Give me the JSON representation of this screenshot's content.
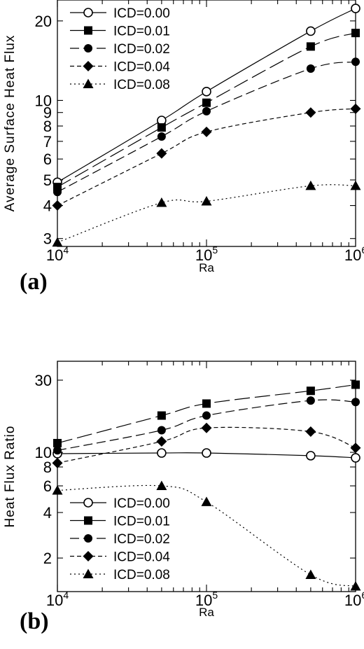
{
  "chart_data": [
    {
      "type": "line",
      "panel": "(a)",
      "xlabel": "Ra",
      "ylabel": "Average Surface Heat Flux",
      "xscale": "log",
      "yscale": "log",
      "xlim": [
        10000,
        1000000
      ],
      "ylim": [
        2.8,
        24
      ],
      "x": [
        10000,
        50000,
        100000,
        500000,
        1000000
      ],
      "x_ticks": [
        {
          "base": "10",
          "exp": "4"
        },
        {
          "base": "10",
          "exp": "5"
        },
        {
          "base": "10",
          "exp": "6"
        }
      ],
      "y_tick_labels": [
        "3",
        "4",
        "5",
        "6",
        "7",
        "8",
        "9",
        "10",
        "20"
      ],
      "legend_position": "top-left",
      "series": [
        {
          "name": "ICD=0.00",
          "marker": "open-circle",
          "dash": "solid",
          "values": [
            4.9,
            8.4,
            10.8,
            18.3,
            22.3
          ]
        },
        {
          "name": "ICD=0.01",
          "marker": "square",
          "dash": "long-dash",
          "values": [
            4.7,
            7.9,
            9.8,
            16.0,
            18.0
          ]
        },
        {
          "name": "ICD=0.02",
          "marker": "circle",
          "dash": "dash",
          "values": [
            4.5,
            7.3,
            9.1,
            13.2,
            14.0
          ]
        },
        {
          "name": "ICD=0.04",
          "marker": "diamond",
          "dash": "short-dash",
          "values": [
            4.0,
            6.3,
            7.6,
            9.0,
            9.3
          ]
        },
        {
          "name": "ICD=0.08",
          "marker": "triangle",
          "dash": "dotted",
          "values": [
            2.9,
            4.1,
            4.15,
            4.75,
            4.75
          ]
        }
      ]
    },
    {
      "type": "line",
      "panel": "(b)",
      "xlabel": "Ra",
      "ylabel": "Heat Flux Ratio",
      "xscale": "log",
      "yscale": "log",
      "xlim": [
        10000,
        1000000
      ],
      "ylim": [
        1.2,
        40
      ],
      "x": [
        10000,
        50000,
        100000,
        500000,
        1000000
      ],
      "x_ticks": [
        {
          "base": "10",
          "exp": "4"
        },
        {
          "base": "10",
          "exp": "5"
        },
        {
          "base": "10",
          "exp": "6"
        }
      ],
      "y_tick_labels": [
        "2",
        "4",
        "6",
        "8",
        "10",
        "30"
      ],
      "legend_position": "bottom-left",
      "series": [
        {
          "name": "ICD=0.00",
          "marker": "open-circle",
          "dash": "solid",
          "values": [
            9.8,
            9.9,
            9.9,
            9.5,
            9.2
          ]
        },
        {
          "name": "ICD=0.01",
          "marker": "square",
          "dash": "long-dash",
          "values": [
            11.5,
            17.5,
            21.0,
            25.5,
            28.0
          ]
        },
        {
          "name": "ICD=0.02",
          "marker": "circle",
          "dash": "dash",
          "values": [
            10.3,
            14.0,
            17.5,
            22.0,
            21.5
          ]
        },
        {
          "name": "ICD=0.04",
          "marker": "diamond",
          "dash": "short-dash",
          "values": [
            8.5,
            11.8,
            14.5,
            13.7,
            10.7
          ]
        },
        {
          "name": "ICD=0.08",
          "marker": "triangle",
          "dash": "dotted",
          "values": [
            5.6,
            6.0,
            4.7,
            1.55,
            1.3
          ]
        }
      ]
    }
  ]
}
